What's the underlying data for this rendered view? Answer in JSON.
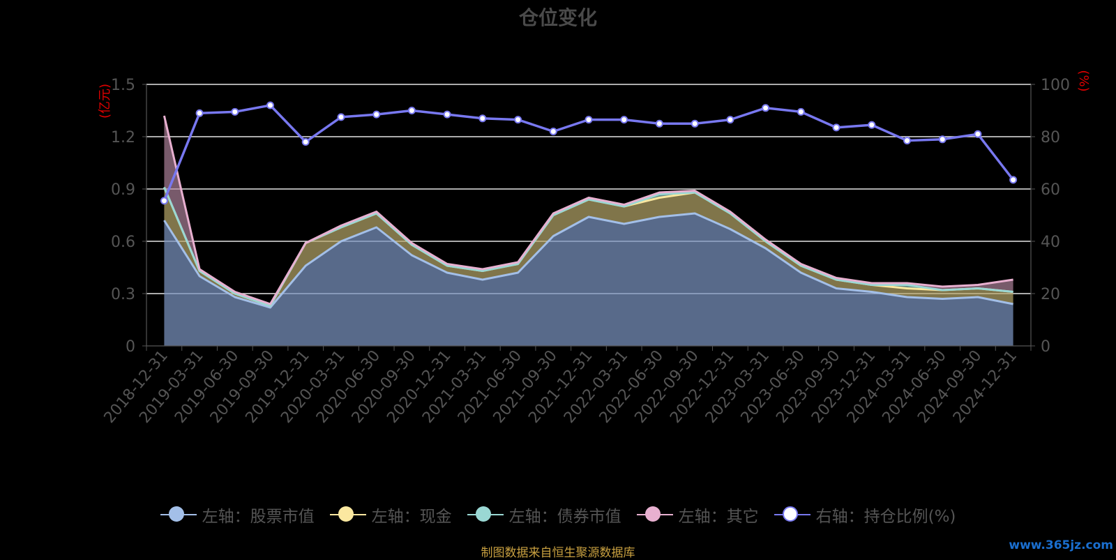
{
  "title": "仓位变化",
  "source_text": "制图数据来自恒生聚源数据库",
  "watermark": "www.365jz.com",
  "chart_data": {
    "type": "area",
    "title": "仓位变化",
    "categories": [
      "2018-12-31",
      "2019-03-31",
      "2019-06-30",
      "2019-09-30",
      "2019-12-31",
      "2020-03-31",
      "2020-06-30",
      "2020-09-30",
      "2020-12-31",
      "2021-03-31",
      "2021-06-30",
      "2021-09-30",
      "2021-12-31",
      "2022-03-31",
      "2022-06-30",
      "2022-09-30",
      "2022-12-31",
      "2023-03-31",
      "2023-06-30",
      "2023-09-30",
      "2023-12-31",
      "2024-03-31",
      "2024-06-30",
      "2024-09-30",
      "2024-12-31"
    ],
    "left_axis": {
      "name": "(亿元)",
      "ylim": [
        0,
        1.5
      ],
      "ticks": [
        "0",
        "0.3",
        "0.6",
        "0.9",
        "1.2",
        "1.5"
      ]
    },
    "right_axis": {
      "name": "(%)",
      "ylim": [
        0,
        100
      ],
      "ticks": [
        "0",
        "20",
        "40",
        "60",
        "80",
        "100"
      ]
    },
    "series": [
      {
        "name": "左轴：股票市值",
        "axis": "left",
        "stacked": true,
        "color": "#a3bfe8",
        "values": [
          0.72,
          0.4,
          0.28,
          0.22,
          0.46,
          0.6,
          0.68,
          0.52,
          0.42,
          0.38,
          0.42,
          0.63,
          0.74,
          0.7,
          0.74,
          0.76,
          0.67,
          0.56,
          0.42,
          0.33,
          0.31,
          0.28,
          0.27,
          0.28,
          0.24
        ]
      },
      {
        "name": "左轴：现金",
        "axis": "left",
        "stacked": true,
        "color": "#fbe8a0",
        "values": [
          0.19,
          0.03,
          0.02,
          0.01,
          0.13,
          0.08,
          0.08,
          0.06,
          0.04,
          0.05,
          0.05,
          0.12,
          0.1,
          0.1,
          0.11,
          0.12,
          0.09,
          0.04,
          0.04,
          0.05,
          0.04,
          0.05,
          0.05,
          0.05,
          0.07
        ]
      },
      {
        "name": "左轴：债券市值",
        "axis": "left",
        "stacked": true,
        "color": "#9ad8d4",
        "values": [
          0.0,
          0.0,
          0.0,
          0.0,
          0.0,
          0.0,
          0.0,
          0.0,
          0.0,
          0.0,
          0.0,
          0.0,
          0.0,
          0.0,
          0.02,
          0.0,
          0.0,
          0.0,
          0.0,
          0.0,
          0.0,
          0.02,
          0.0,
          0.0,
          0.0
        ]
      },
      {
        "name": "左轴：其它",
        "axis": "left",
        "stacked": true,
        "color": "#e8b0d0",
        "values": [
          0.41,
          0.01,
          0.01,
          0.01,
          0.0,
          0.01,
          0.01,
          0.01,
          0.01,
          0.01,
          0.01,
          0.01,
          0.01,
          0.01,
          0.01,
          0.01,
          0.01,
          0.01,
          0.01,
          0.01,
          0.01,
          0.01,
          0.02,
          0.02,
          0.07
        ]
      },
      {
        "name": "右轴：持仓比例(%)",
        "axis": "right",
        "type": "line",
        "color": "#7878f0",
        "values": [
          55.5,
          89.0,
          89.5,
          92.0,
          78.0,
          87.5,
          88.5,
          90.0,
          88.5,
          87.0,
          86.5,
          82.0,
          86.5,
          86.5,
          85.0,
          85.0,
          86.5,
          91.0,
          89.5,
          83.5,
          84.5,
          78.5,
          79.0,
          81.0,
          63.5
        ]
      }
    ],
    "grid": true,
    "legend_position": "bottom"
  }
}
